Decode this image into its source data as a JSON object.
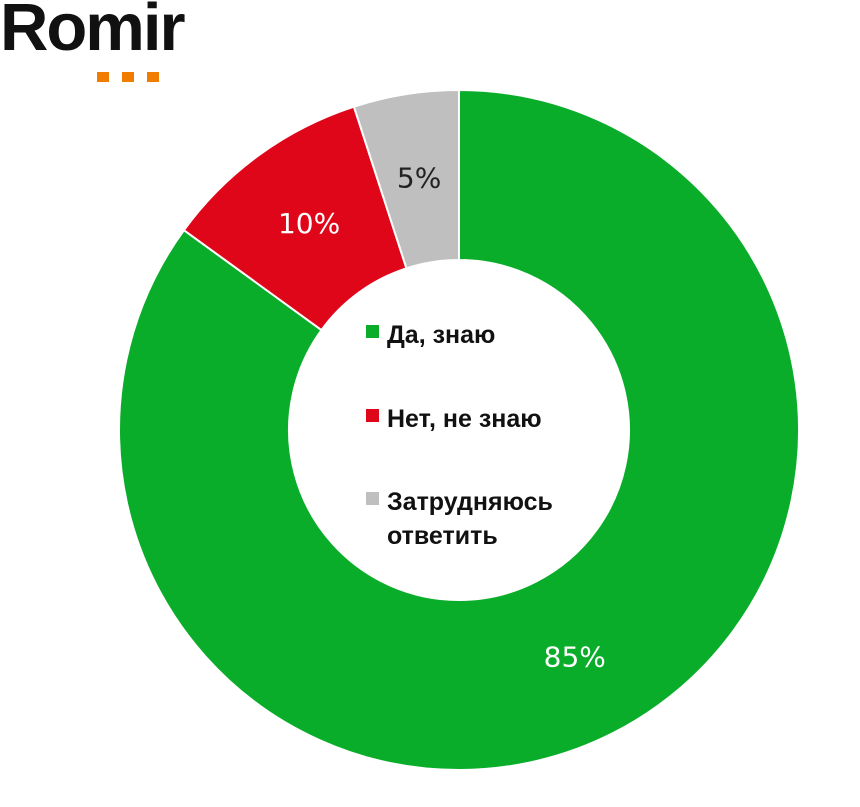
{
  "logo": {
    "text": "Romir",
    "dot_color": "#f07d00"
  },
  "chart_data": {
    "type": "pie",
    "variant": "donut",
    "start": "top, clockwise",
    "slices": [
      {
        "label": "Да, знаю",
        "value": 85,
        "value_label": "85%",
        "color": "#0aad2a",
        "label_color": "#ffffff"
      },
      {
        "label": "Нет, не знаю",
        "value": 10,
        "value_label": "10%",
        "color": "#e0061a",
        "label_color": "#ffffff"
      },
      {
        "label": "Затрудняюсь ответить",
        "value": 5,
        "value_label": "5%",
        "color": "#bfbfbf",
        "label_color": "#222222"
      }
    ],
    "legend_placement": "inside donut hole"
  },
  "legend": {
    "items": [
      {
        "text": "Да, знаю",
        "color": "#0aad2a"
      },
      {
        "text": "Нет, не знаю",
        "color": "#e0061a"
      },
      {
        "text_line1": "Затрудняюсь",
        "text_line2": "ответить",
        "color": "#bfbfbf"
      }
    ]
  }
}
